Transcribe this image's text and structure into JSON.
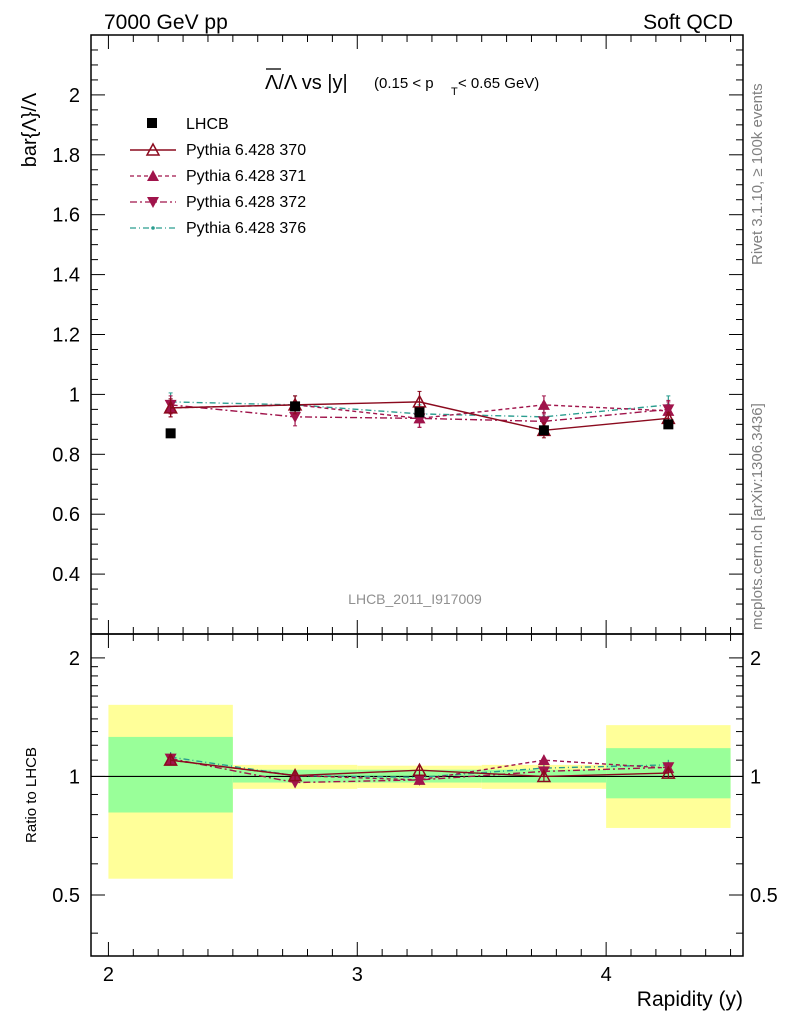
{
  "header": {
    "left": "7000 GeV pp",
    "right": "Soft QCD"
  },
  "side_labels": {
    "rivet": "Rivet 3.1.10, ≥ 100k events",
    "mcplots": "mcplots.cern.ch [arXiv:1306.3436]"
  },
  "watermark": "LHCB_2011_I917009",
  "title_main": "Λ/Λ vs |y|",
  "title_bar_symbol": "Λ",
  "title_cut": "(0.15 < p",
  "title_cut_sub": "T",
  "title_cut_end": " < 0.65 GeV)",
  "colors": {
    "data": "#000000",
    "mc370": "#8b0a1e",
    "mc371": "#a0144b",
    "mc372": "#a0144b",
    "mc376": "#2a9d8f",
    "band_inner": "#99ff99",
    "band_outer": "#ffff99"
  },
  "chart_data": [
    {
      "type": "scatter",
      "ylabel": "bar{Λ}/Λ",
      "xlabel": "",
      "xlim": [
        1.93,
        4.55
      ],
      "ylim": [
        0.2,
        2.2
      ],
      "yticks": [
        0.4,
        0.6,
        0.8,
        1.0,
        1.2,
        1.4,
        1.6,
        1.8,
        2.0
      ],
      "ytick_labels": [
        "0.4",
        "0.6",
        "0.8",
        "1",
        "1.2",
        "1.4",
        "1.6",
        "1.8",
        "2"
      ],
      "x": [
        2.25,
        2.75,
        3.25,
        3.75,
        4.25
      ],
      "series": [
        {
          "name": "LHCB",
          "values": [
            0.87,
            0.96,
            0.94,
            0.88,
            0.9
          ],
          "errors": [
            0.005,
            0.005,
            0.005,
            0.005,
            0.005
          ]
        },
        {
          "name": "Pythia 6.428 370",
          "values": [
            0.955,
            0.965,
            0.975,
            0.88,
            0.92
          ],
          "errors": [
            0.03,
            0.03,
            0.035,
            0.025,
            0.02
          ]
        },
        {
          "name": "Pythia 6.428 371",
          "values": [
            0.955,
            0.965,
            0.92,
            0.965,
            0.945
          ],
          "errors": [
            0.03,
            0.03,
            0.03,
            0.03,
            0.03
          ]
        },
        {
          "name": "Pythia 6.428 372",
          "values": [
            0.965,
            0.925,
            0.92,
            0.91,
            0.95
          ],
          "errors": [
            0.03,
            0.03,
            0.03,
            0.03,
            0.03
          ]
        },
        {
          "name": "Pythia 6.428 376",
          "values": [
            0.975,
            0.965,
            0.935,
            0.925,
            0.965
          ],
          "errors": [
            0.03,
            0.03,
            0.03,
            0.03,
            0.03
          ]
        }
      ],
      "legend": "top-left"
    },
    {
      "type": "scatter",
      "ylabel": "Ratio to LHCB",
      "xlabel": "Rapidity (y)",
      "xlim": [
        1.93,
        4.55
      ],
      "ylim": [
        0.35,
        2.3
      ],
      "yscale": "log",
      "yticks": [
        0.5,
        1,
        2
      ],
      "ytick_labels": [
        "0.5",
        "1",
        "2"
      ],
      "xticks": [
        2,
        3,
        4
      ],
      "xtick_labels": [
        "2",
        "3",
        "4"
      ],
      "bins": [
        [
          2.0,
          2.5
        ],
        [
          2.5,
          3.0
        ],
        [
          3.0,
          3.5
        ],
        [
          3.5,
          4.0
        ],
        [
          4.0,
          4.5
        ]
      ],
      "band_inner": [
        [
          0.81,
          1.26
        ],
        [
          0.965,
          1.04
        ],
        [
          0.965,
          1.04
        ],
        [
          0.965,
          1.04
        ],
        [
          0.88,
          1.18
        ]
      ],
      "band_outer": [
        [
          0.55,
          1.52
        ],
        [
          0.93,
          1.07
        ],
        [
          0.935,
          1.065
        ],
        [
          0.93,
          1.07
        ],
        [
          0.74,
          1.35
        ]
      ],
      "x": [
        2.25,
        2.75,
        3.25,
        3.75,
        4.25
      ],
      "series": [
        {
          "name": "Pythia 6.428 370",
          "values": [
            1.1,
            1.005,
            1.037,
            1.0,
            1.02
          ]
        },
        {
          "name": "Pythia 6.428 371",
          "values": [
            1.1,
            1.005,
            0.98,
            1.1,
            1.05
          ]
        },
        {
          "name": "Pythia 6.428 372",
          "values": [
            1.11,
            0.965,
            0.98,
            1.03,
            1.055
          ]
        },
        {
          "name": "Pythia 6.428 376",
          "values": [
            1.12,
            1.005,
            0.995,
            1.05,
            1.07
          ]
        }
      ]
    }
  ]
}
